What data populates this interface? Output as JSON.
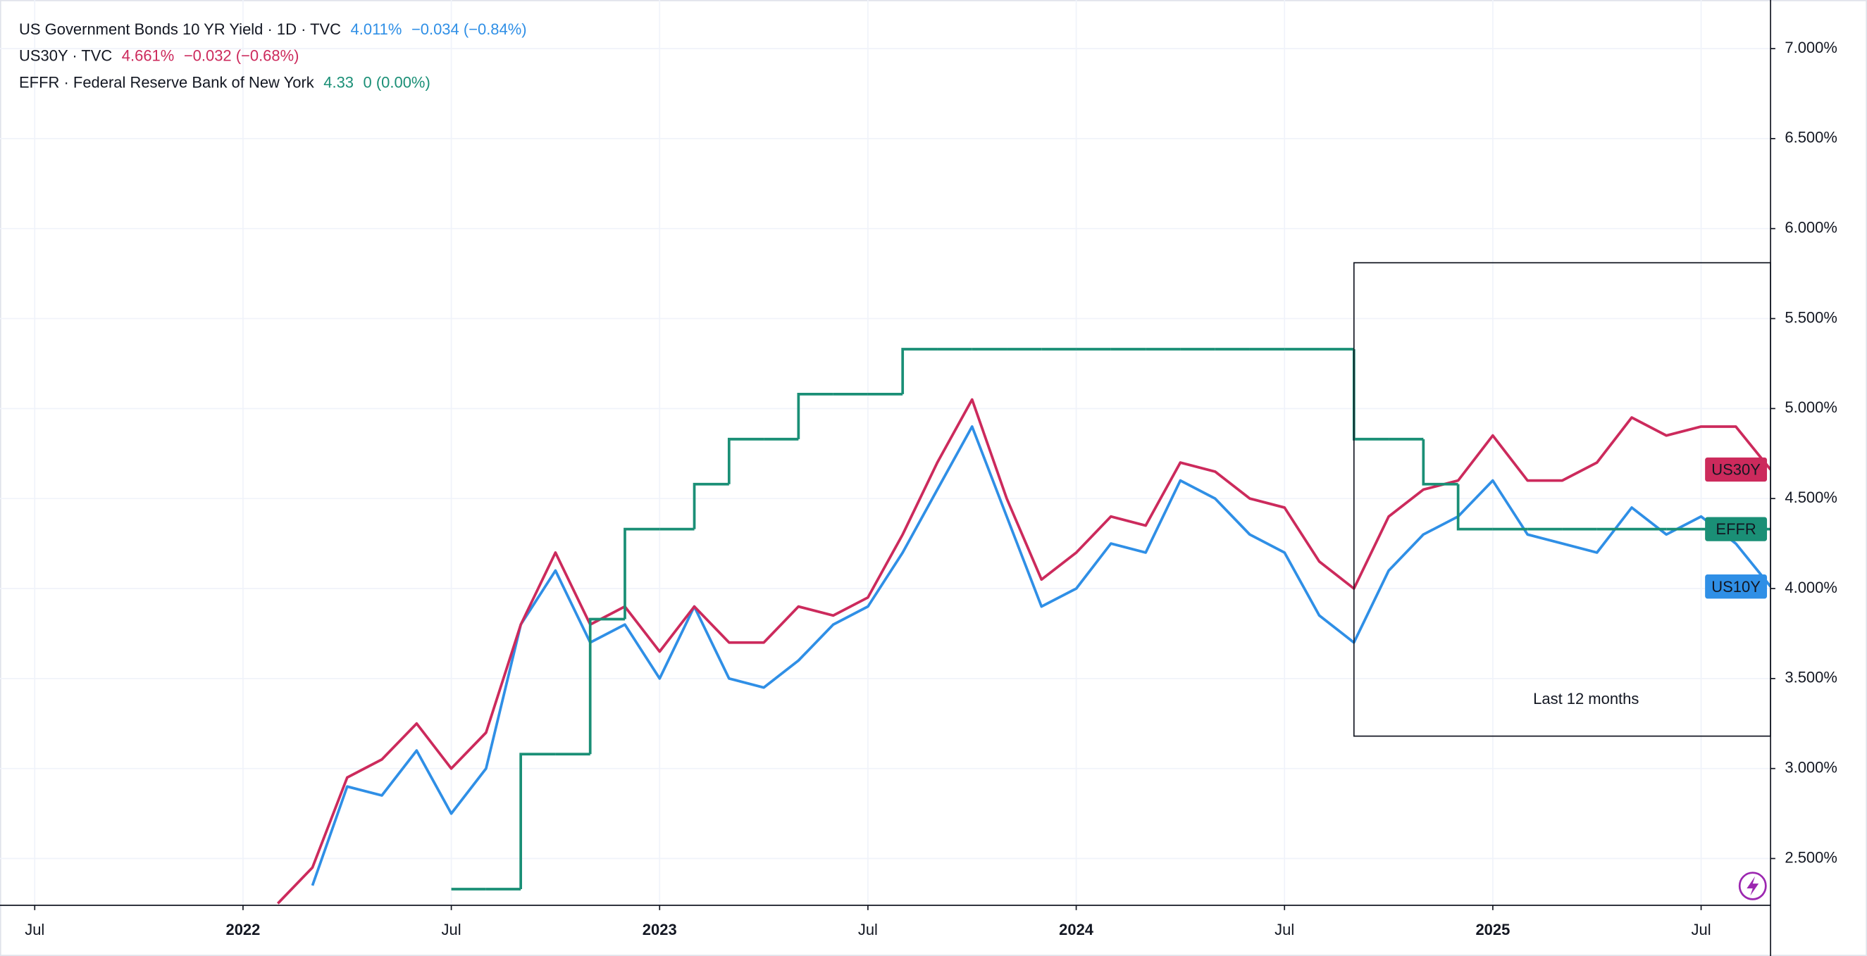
{
  "chart_data": {
    "type": "line",
    "legend": [
      {
        "title": "US Government Bonds 10 YR Yield · 1D · TVC",
        "value": "4.011%",
        "change": "−0.034 (−0.84%)"
      },
      {
        "title": "US30Y · TVC",
        "value": "4.661%",
        "change": "−0.032 (−0.68%)"
      },
      {
        "title": "EFFR · Federal Reserve Bank of New York",
        "value": "4.33",
        "change": "0 (0.00%)"
      }
    ],
    "x": [
      "2022-02",
      "2022-03",
      "2022-04",
      "2022-05",
      "2022-06",
      "2022-07",
      "2022-08",
      "2022-09",
      "2022-10",
      "2022-11",
      "2022-12",
      "2023-01",
      "2023-02",
      "2023-03",
      "2023-04",
      "2023-05",
      "2023-06",
      "2023-07",
      "2023-08",
      "2023-09",
      "2023-10",
      "2023-11",
      "2023-12",
      "2024-01",
      "2024-02",
      "2024-03",
      "2024-04",
      "2024-05",
      "2024-06",
      "2024-07",
      "2024-08",
      "2024-09",
      "2024-10",
      "2024-11",
      "2024-12",
      "2025-01",
      "2025-02",
      "2025-03",
      "2025-04",
      "2025-05",
      "2025-06",
      "2025-07",
      "2025-08",
      "2025-09"
    ],
    "series": [
      {
        "name": "US10Y",
        "color": "#2f8fe6",
        "values": [
          null,
          2.35,
          2.9,
          2.85,
          3.1,
          2.75,
          3.0,
          3.8,
          4.1,
          3.7,
          3.8,
          3.5,
          3.9,
          3.5,
          3.45,
          3.6,
          3.8,
          3.9,
          4.2,
          4.55,
          4.9,
          4.4,
          3.9,
          4.0,
          4.25,
          4.2,
          4.6,
          4.5,
          4.3,
          4.2,
          3.85,
          3.7,
          4.1,
          4.3,
          4.4,
          4.6,
          4.3,
          4.25,
          4.2,
          4.45,
          4.3,
          4.4,
          4.25,
          4.011
        ]
      },
      {
        "name": "US30Y",
        "color": "#cc2a5c",
        "values": [
          2.25,
          2.45,
          2.95,
          3.05,
          3.25,
          3.0,
          3.2,
          3.8,
          4.2,
          3.8,
          3.9,
          3.65,
          3.9,
          3.7,
          3.7,
          3.9,
          3.85,
          3.95,
          4.3,
          4.7,
          5.05,
          4.5,
          4.05,
          4.2,
          4.4,
          4.35,
          4.7,
          4.65,
          4.5,
          4.45,
          4.15,
          4.0,
          4.4,
          4.55,
          4.6,
          4.85,
          4.6,
          4.6,
          4.7,
          4.95,
          4.85,
          4.9,
          4.9,
          4.661
        ]
      },
      {
        "name": "EFFR",
        "color": "#1a8f76",
        "step": true,
        "values": [
          null,
          null,
          null,
          null,
          null,
          2.33,
          2.33,
          3.08,
          3.08,
          3.83,
          4.33,
          4.33,
          4.58,
          4.83,
          4.83,
          5.08,
          5.08,
          5.08,
          5.33,
          5.33,
          5.33,
          5.33,
          5.33,
          5.33,
          5.33,
          5.33,
          5.33,
          5.33,
          5.33,
          5.33,
          5.33,
          4.83,
          4.83,
          4.58,
          4.33,
          4.33,
          4.33,
          4.33,
          4.33,
          4.33,
          4.33,
          4.33,
          4.33,
          4.33
        ]
      }
    ],
    "xlim": [
      "2021-06",
      "2025-09"
    ],
    "xticks": [
      {
        "value": "2021-07",
        "label": "Jul"
      },
      {
        "value": "2022-01",
        "label": "2022"
      },
      {
        "value": "2022-07",
        "label": "Jul"
      },
      {
        "value": "2023-01",
        "label": "2023"
      },
      {
        "value": "2023-07",
        "label": "Jul"
      },
      {
        "value": "2024-01",
        "label": "2024"
      },
      {
        "value": "2024-07",
        "label": "Jul"
      },
      {
        "value": "2025-01",
        "label": "2025"
      },
      {
        "value": "2025-07",
        "label": "Jul"
      }
    ],
    "ylim": [
      2.24,
      7.27
    ],
    "yticks": [
      {
        "value": 2.5,
        "label": "2.500%"
      },
      {
        "value": 3.0,
        "label": "3.000%"
      },
      {
        "value": 3.5,
        "label": "3.500%"
      },
      {
        "value": 4.0,
        "label": "4.000%"
      },
      {
        "value": 4.5,
        "label": "4.500%"
      },
      {
        "value": 5.0,
        "label": "5.000%"
      },
      {
        "value": 5.5,
        "label": "5.500%"
      },
      {
        "value": 6.0,
        "label": "6.000%"
      },
      {
        "value": 6.5,
        "label": "6.500%"
      },
      {
        "value": 7.0,
        "label": "7.000%"
      }
    ],
    "grid": true,
    "annotation": {
      "text": "Last 12 months",
      "x": [
        "2024-09",
        "2025-09"
      ],
      "y": [
        3.18,
        5.81
      ]
    }
  }
}
